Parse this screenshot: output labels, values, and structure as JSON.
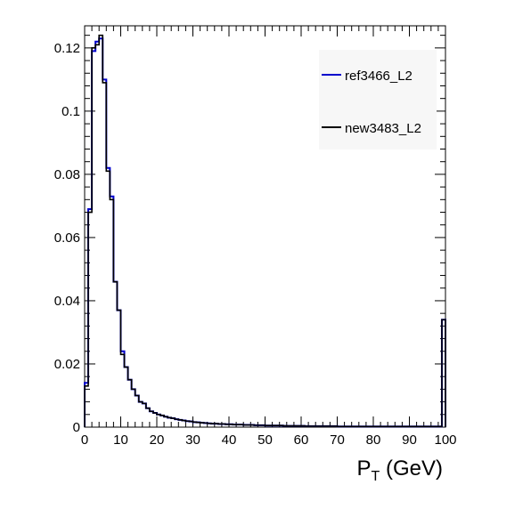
{
  "chart_data": {
    "type": "line",
    "style": "step-histogram",
    "xlabel_main": "P",
    "xlabel_sub": "T",
    "xlabel_unit": " (GeV)",
    "xlim": [
      0,
      100
    ],
    "ylim": [
      0,
      0.127
    ],
    "xticks": [
      "0",
      "10",
      "20",
      "30",
      "40",
      "50",
      "60",
      "70",
      "80",
      "90",
      "100"
    ],
    "yticks": [
      "0",
      "0.02",
      "0.04",
      "0.06",
      "0.08",
      "0.1",
      "0.12"
    ],
    "legend_position": "top-right",
    "bin_width": 1,
    "series": [
      {
        "name": "ref3466_L2",
        "color": "#0000cc",
        "values": [
          0.014,
          0.069,
          0.119,
          0.122,
          0.123,
          0.11,
          0.082,
          0.073,
          0.046,
          0.037,
          0.024,
          0.019,
          0.015,
          0.012,
          0.01,
          0.008,
          0.0075,
          0.006,
          0.005,
          0.0045,
          0.004,
          0.0037,
          0.0033,
          0.003,
          0.0028,
          0.0025,
          0.0023,
          0.0021,
          0.0019,
          0.0018,
          0.0016,
          0.0015,
          0.0014,
          0.0013,
          0.0012,
          0.0011,
          0.0011,
          0.001,
          0.001,
          0.0009,
          0.0009,
          0.0008,
          0.0008,
          0.0008,
          0.0007,
          0.0007,
          0.0007,
          0.0006,
          0.0006,
          0.0006,
          0.0005,
          0.0005,
          0.0005,
          0.0005,
          0.0005,
          0.0004,
          0.0004,
          0.0004,
          0.0004,
          0.0004,
          0.0004,
          0.0003,
          0.0003,
          0.0003,
          0.0003,
          0.0003,
          0.0003,
          0.0003,
          0.0003,
          0.0003,
          0.0002,
          0.0002,
          0.0002,
          0.0002,
          0.0002,
          0.0002,
          0.0002,
          0.0002,
          0.0002,
          0.0002,
          0.0002,
          0.0002,
          0.0002,
          0.0002,
          0.0002,
          0.0002,
          0.0002,
          0.0002,
          0.0002,
          0.0002,
          0.0002,
          0.0002,
          0.0002,
          0.0002,
          0.0002,
          0.0002,
          0.0002,
          0.0002,
          0.0002,
          0.034
        ]
      },
      {
        "name": "new3483_L2",
        "color": "#000000",
        "values": [
          0.013,
          0.068,
          0.12,
          0.121,
          0.124,
          0.109,
          0.081,
          0.072,
          0.046,
          0.037,
          0.023,
          0.019,
          0.015,
          0.012,
          0.01,
          0.008,
          0.0075,
          0.006,
          0.005,
          0.0045,
          0.004,
          0.0037,
          0.0033,
          0.003,
          0.0028,
          0.0025,
          0.0023,
          0.0021,
          0.0019,
          0.0018,
          0.0016,
          0.0015,
          0.0014,
          0.0013,
          0.0012,
          0.0011,
          0.0011,
          0.001,
          0.001,
          0.0009,
          0.0009,
          0.0008,
          0.0008,
          0.0008,
          0.0007,
          0.0007,
          0.0007,
          0.0006,
          0.0006,
          0.0006,
          0.0005,
          0.0005,
          0.0005,
          0.0005,
          0.0005,
          0.0004,
          0.0004,
          0.0004,
          0.0004,
          0.0004,
          0.0004,
          0.0003,
          0.0003,
          0.0003,
          0.0003,
          0.0003,
          0.0003,
          0.0003,
          0.0003,
          0.0003,
          0.0002,
          0.0002,
          0.0002,
          0.0002,
          0.0002,
          0.0002,
          0.0002,
          0.0002,
          0.0002,
          0.0002,
          0.0002,
          0.0002,
          0.0002,
          0.0002,
          0.0002,
          0.0002,
          0.0002,
          0.0002,
          0.0002,
          0.0002,
          0.0002,
          0.0002,
          0.0002,
          0.0002,
          0.0002,
          0.0002,
          0.0002,
          0.0002,
          0.0002,
          0.034
        ]
      }
    ]
  }
}
